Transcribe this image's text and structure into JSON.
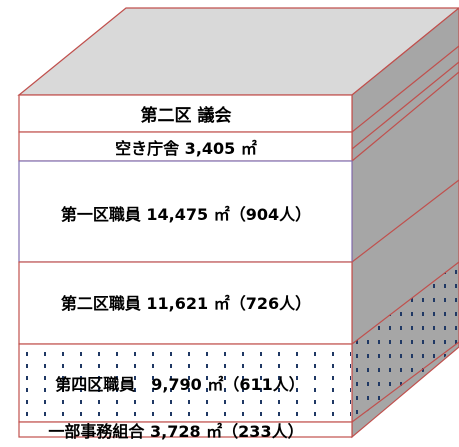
{
  "floors": [
    {
      "id": "assembly",
      "label": "第二区  議会"
    },
    {
      "id": "vacant",
      "label": "空き庁舎  3,405 ㎡"
    },
    {
      "id": "ward1",
      "label": "第一区職員 14,475 ㎡（904人）"
    },
    {
      "id": "ward2",
      "label": "第二区職員 11,621 ㎡（726人）"
    },
    {
      "id": "ward4",
      "label": "第四区職員　9,790 ㎡（611人）"
    },
    {
      "id": "union",
      "label": "一部事務組合 3,728 ㎡（233人）"
    }
  ],
  "colors": {
    "side_face": "#a6a6a6",
    "top_face": "#d9d9d9",
    "front_face": "#ffffff",
    "floor_line": "#c0504d",
    "ward1_line": "#7f6fb0",
    "dots": "#1f3864"
  }
}
